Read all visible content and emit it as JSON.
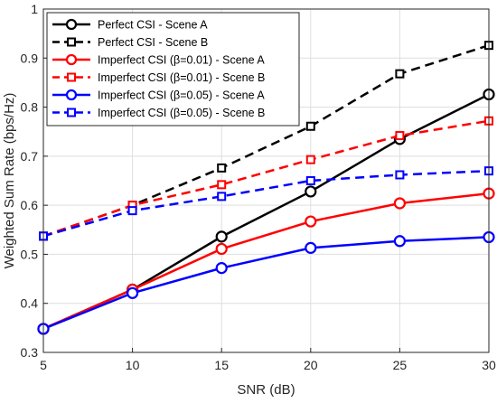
{
  "chart_data": {
    "type": "line",
    "xlabel": "SNR (dB)",
    "ylabel": "Weighted Sum Rate (bps/Hz)",
    "x": [
      5,
      10,
      15,
      20,
      25,
      30
    ],
    "xlim": [
      5,
      30
    ],
    "ylim": [
      0.3,
      1.0
    ],
    "xticks": [
      "5",
      "10",
      "15",
      "20",
      "25",
      "30"
    ],
    "yticks": [
      "0.3",
      "0.4",
      "0.5",
      "0.6",
      "0.7",
      "0.8",
      "0.9",
      "1"
    ],
    "grid": true,
    "legend_position": "top-left",
    "series": [
      {
        "name": "Perfect CSI - Scene A",
        "color": "#000000",
        "dash": "solid",
        "marker": "circle",
        "values": [
          0.348,
          0.428,
          0.536,
          0.628,
          0.735,
          0.826
        ]
      },
      {
        "name": "Perfect CSI - Scene B",
        "color": "#000000",
        "dash": "dashed",
        "marker": "square",
        "values": [
          0.537,
          0.6,
          0.676,
          0.761,
          0.868,
          0.926
        ]
      },
      {
        "name": "Imperfect CSI (β=0.01) - Scene A",
        "color": "#ff0000",
        "dash": "solid",
        "marker": "circle",
        "values": [
          0.348,
          0.428,
          0.511,
          0.567,
          0.604,
          0.624
        ]
      },
      {
        "name": "Imperfect CSI (β=0.01) - Scene B",
        "color": "#ff0000",
        "dash": "dashed",
        "marker": "square",
        "values": [
          0.537,
          0.6,
          0.642,
          0.693,
          0.742,
          0.772
        ]
      },
      {
        "name": "Imperfect CSI (β=0.05) - Scene A",
        "color": "#0000ff",
        "dash": "solid",
        "marker": "circle",
        "values": [
          0.348,
          0.421,
          0.472,
          0.513,
          0.527,
          0.535
        ]
      },
      {
        "name": "Imperfect CSI (β=0.05) - Scene B",
        "color": "#0000ff",
        "dash": "dashed",
        "marker": "square",
        "values": [
          0.537,
          0.589,
          0.618,
          0.65,
          0.662,
          0.67
        ]
      }
    ]
  }
}
